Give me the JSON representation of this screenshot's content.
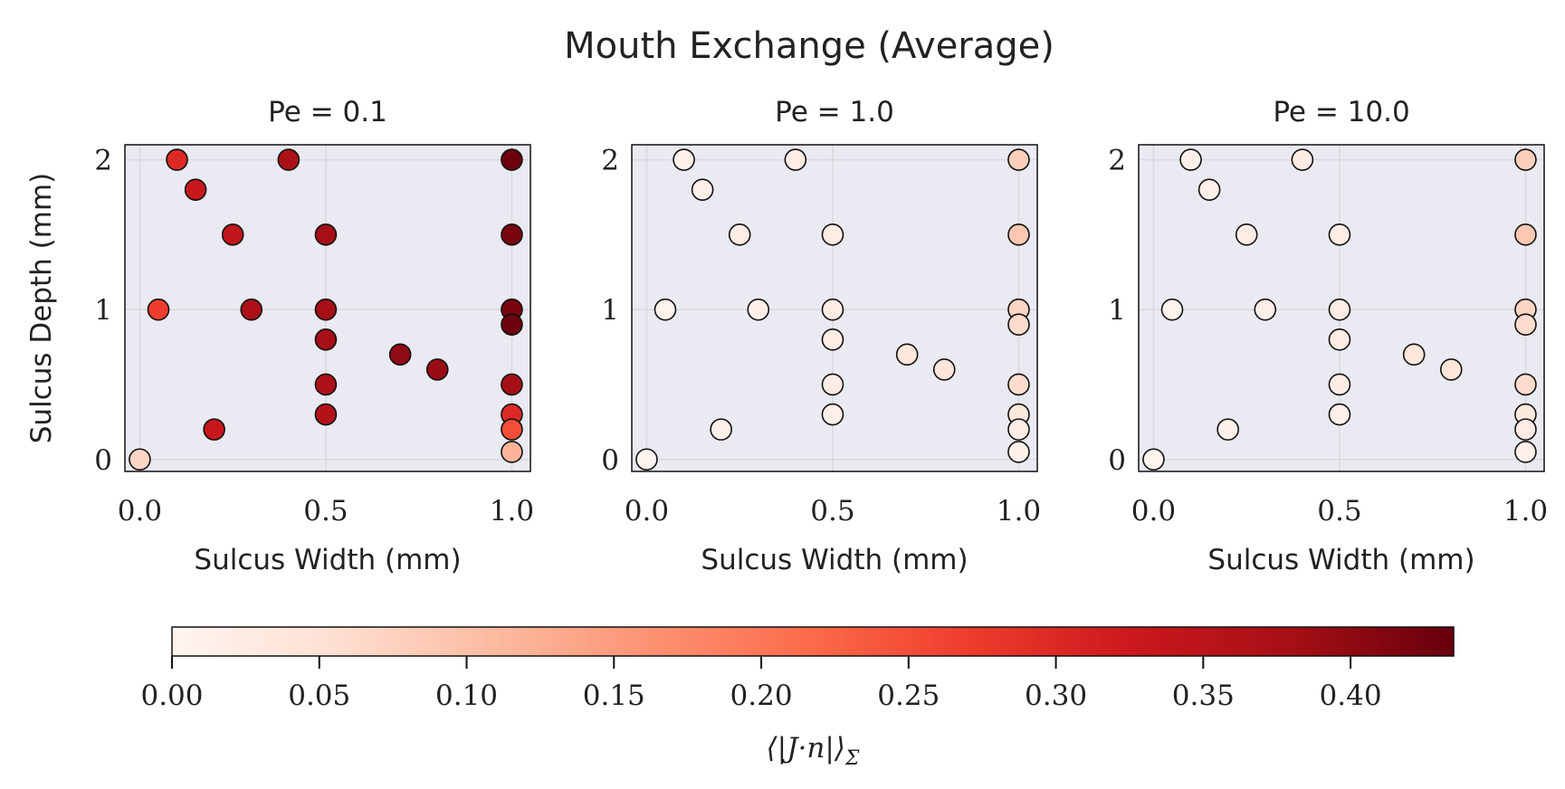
{
  "figure": {
    "title": "Mouth Exchange (Average)"
  },
  "chart_data": [
    {
      "type": "scatter",
      "title": "Pe = 0.1",
      "xlabel": "Sulcus Width (mm)",
      "ylabel": "Sulcus Depth (mm)",
      "xlim": [
        -0.04,
        1.05
      ],
      "ylim": [
        -0.08,
        2.1
      ],
      "xticks": [
        0.0,
        0.5,
        1.0
      ],
      "xtick_labels": [
        "0.0",
        "0.5",
        "1.0"
      ],
      "yticks": [
        0,
        1,
        2
      ],
      "ytick_labels": [
        "0",
        "1",
        "2"
      ],
      "grid": true,
      "points": [
        {
          "x": 0.1,
          "y": 2.0,
          "value": 0.3
        },
        {
          "x": 0.4,
          "y": 2.0,
          "value": 0.37
        },
        {
          "x": 1.0,
          "y": 2.0,
          "value": 0.43
        },
        {
          "x": 0.15,
          "y": 1.8,
          "value": 0.33
        },
        {
          "x": 0.25,
          "y": 1.5,
          "value": 0.34
        },
        {
          "x": 0.5,
          "y": 1.5,
          "value": 0.38
        },
        {
          "x": 1.0,
          "y": 1.5,
          "value": 0.42
        },
        {
          "x": 0.05,
          "y": 1.0,
          "value": 0.27
        },
        {
          "x": 0.3,
          "y": 1.0,
          "value": 0.37
        },
        {
          "x": 0.5,
          "y": 1.0,
          "value": 0.38
        },
        {
          "x": 1.0,
          "y": 1.0,
          "value": 0.42
        },
        {
          "x": 1.0,
          "y": 0.9,
          "value": 0.43
        },
        {
          "x": 0.5,
          "y": 0.8,
          "value": 0.38
        },
        {
          "x": 0.7,
          "y": 0.7,
          "value": 0.4
        },
        {
          "x": 0.8,
          "y": 0.6,
          "value": 0.39
        },
        {
          "x": 0.5,
          "y": 0.5,
          "value": 0.37
        },
        {
          "x": 1.0,
          "y": 0.5,
          "value": 0.38
        },
        {
          "x": 0.5,
          "y": 0.3,
          "value": 0.36
        },
        {
          "x": 1.0,
          "y": 0.3,
          "value": 0.3
        },
        {
          "x": 0.2,
          "y": 0.2,
          "value": 0.33
        },
        {
          "x": 1.0,
          "y": 0.2,
          "value": 0.25
        },
        {
          "x": 1.0,
          "y": 0.05,
          "value": 0.12
        },
        {
          "x": 0.0,
          "y": 0.0,
          "value": 0.07
        }
      ]
    },
    {
      "type": "scatter",
      "title": "Pe = 1.0",
      "xlabel": "Sulcus Width (mm)",
      "ylabel": "",
      "xlim": [
        -0.04,
        1.05
      ],
      "ylim": [
        -0.08,
        2.1
      ],
      "xticks": [
        0.0,
        0.5,
        1.0
      ],
      "xtick_labels": [
        "0.0",
        "0.5",
        "1.0"
      ],
      "yticks": [
        0,
        1,
        2
      ],
      "ytick_labels": [
        "0",
        "1",
        "2"
      ],
      "grid": true,
      "points": [
        {
          "x": 0.1,
          "y": 2.0,
          "value": 0.01
        },
        {
          "x": 0.4,
          "y": 2.0,
          "value": 0.02
        },
        {
          "x": 1.0,
          "y": 2.0,
          "value": 0.08
        },
        {
          "x": 0.15,
          "y": 1.8,
          "value": 0.01
        },
        {
          "x": 0.25,
          "y": 1.5,
          "value": 0.02
        },
        {
          "x": 0.5,
          "y": 1.5,
          "value": 0.02
        },
        {
          "x": 1.0,
          "y": 1.5,
          "value": 0.09
        },
        {
          "x": 0.05,
          "y": 1.0,
          "value": 0.005
        },
        {
          "x": 0.3,
          "y": 1.0,
          "value": 0.015
        },
        {
          "x": 0.5,
          "y": 1.0,
          "value": 0.02
        },
        {
          "x": 1.0,
          "y": 1.0,
          "value": 0.07
        },
        {
          "x": 1.0,
          "y": 0.9,
          "value": 0.06
        },
        {
          "x": 0.5,
          "y": 0.8,
          "value": 0.02
        },
        {
          "x": 0.7,
          "y": 0.7,
          "value": 0.04
        },
        {
          "x": 0.8,
          "y": 0.6,
          "value": 0.04
        },
        {
          "x": 0.5,
          "y": 0.5,
          "value": 0.02
        },
        {
          "x": 1.0,
          "y": 0.5,
          "value": 0.06
        },
        {
          "x": 0.5,
          "y": 0.3,
          "value": 0.01
        },
        {
          "x": 1.0,
          "y": 0.3,
          "value": 0.03
        },
        {
          "x": 0.2,
          "y": 0.2,
          "value": 0.01
        },
        {
          "x": 1.0,
          "y": 0.2,
          "value": 0.02
        },
        {
          "x": 1.0,
          "y": 0.05,
          "value": 0.01
        },
        {
          "x": 0.0,
          "y": 0.0,
          "value": 0.0
        }
      ]
    },
    {
      "type": "scatter",
      "title": "Pe = 10.0",
      "xlabel": "Sulcus Width (mm)",
      "ylabel": "",
      "xlim": [
        -0.04,
        1.05
      ],
      "ylim": [
        -0.08,
        2.1
      ],
      "xticks": [
        0.0,
        0.5,
        1.0
      ],
      "xtick_labels": [
        "0.0",
        "0.5",
        "1.0"
      ],
      "yticks": [
        0,
        1,
        2
      ],
      "ytick_labels": [
        "0",
        "1",
        "2"
      ],
      "grid": true,
      "points": [
        {
          "x": 0.1,
          "y": 2.0,
          "value": 0.01
        },
        {
          "x": 0.4,
          "y": 2.0,
          "value": 0.02
        },
        {
          "x": 1.0,
          "y": 2.0,
          "value": 0.08
        },
        {
          "x": 0.15,
          "y": 1.8,
          "value": 0.01
        },
        {
          "x": 0.25,
          "y": 1.5,
          "value": 0.02
        },
        {
          "x": 0.5,
          "y": 1.5,
          "value": 0.02
        },
        {
          "x": 1.0,
          "y": 1.5,
          "value": 0.09
        },
        {
          "x": 0.05,
          "y": 1.0,
          "value": 0.005
        },
        {
          "x": 0.3,
          "y": 1.0,
          "value": 0.015
        },
        {
          "x": 0.5,
          "y": 1.0,
          "value": 0.02
        },
        {
          "x": 1.0,
          "y": 1.0,
          "value": 0.07
        },
        {
          "x": 1.0,
          "y": 0.9,
          "value": 0.06
        },
        {
          "x": 0.5,
          "y": 0.8,
          "value": 0.02
        },
        {
          "x": 0.7,
          "y": 0.7,
          "value": 0.04
        },
        {
          "x": 0.8,
          "y": 0.6,
          "value": 0.04
        },
        {
          "x": 0.5,
          "y": 0.5,
          "value": 0.02
        },
        {
          "x": 1.0,
          "y": 0.5,
          "value": 0.06
        },
        {
          "x": 0.5,
          "y": 0.3,
          "value": 0.01
        },
        {
          "x": 1.0,
          "y": 0.3,
          "value": 0.03
        },
        {
          "x": 0.2,
          "y": 0.2,
          "value": 0.01
        },
        {
          "x": 1.0,
          "y": 0.2,
          "value": 0.02
        },
        {
          "x": 1.0,
          "y": 0.05,
          "value": 0.01
        },
        {
          "x": 0.0,
          "y": 0.0,
          "value": 0.0
        }
      ]
    }
  ],
  "colorbar": {
    "label": "⟨|J·n|⟩",
    "label_subscript": "Σ",
    "colormap": "Reds",
    "range": [
      0.0,
      0.435
    ],
    "ticks": [
      0.0,
      0.05,
      0.1,
      0.15,
      0.2,
      0.25,
      0.3,
      0.35,
      0.4
    ],
    "tick_labels": [
      "0.00",
      "0.05",
      "0.10",
      "0.15",
      "0.20",
      "0.25",
      "0.30",
      "0.35",
      "0.40"
    ],
    "orientation": "horizontal",
    "placement": "bottom"
  },
  "style": {
    "axes_background": "#eaeaf2",
    "grid_color": "#d9d9df",
    "marker_edge": "#111111",
    "colormap_stops": [
      "#fff5f0",
      "#fee0d2",
      "#fcbba1",
      "#fc9272",
      "#fb6a4a",
      "#ef3b2c",
      "#cb181d",
      "#a50f15",
      "#67000d"
    ]
  }
}
